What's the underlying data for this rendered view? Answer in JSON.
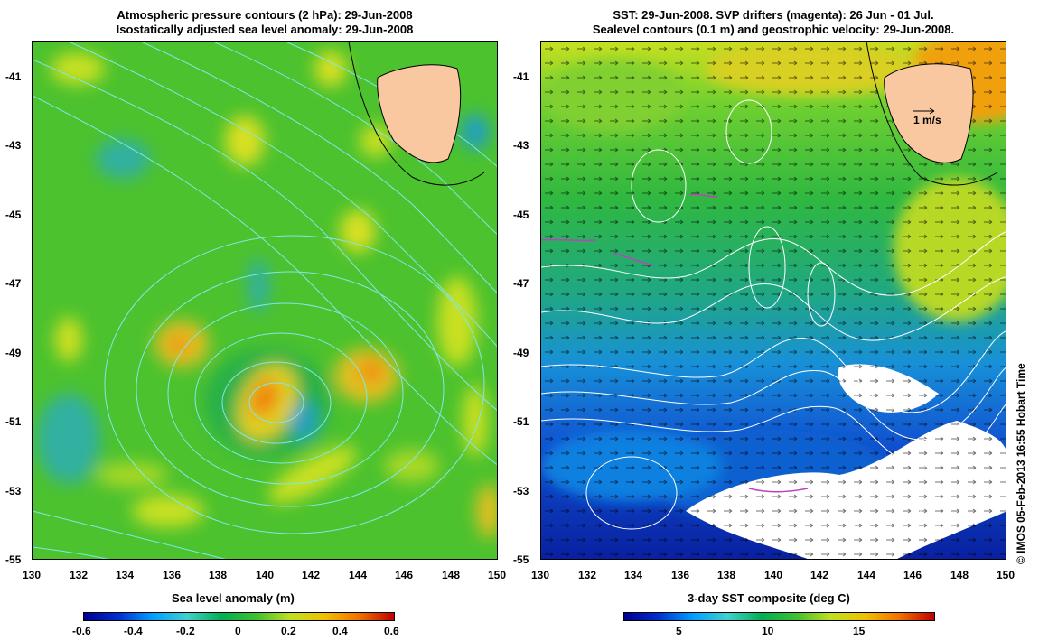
{
  "left_panel": {
    "title_line1": "Atmospheric pressure contours (2 hPa): 29-Jun-2008",
    "title_line2": "Isostatically adjusted sea level anomaly: 29-Jun-2008",
    "colorbar_title": "Sea level anomaly (m)",
    "colorbar_ticks": [
      "-0.6",
      "-0.4",
      "-0.2",
      "0",
      "0.2",
      "0.4",
      "0.6"
    ],
    "colorbar_range": [
      -0.6,
      0.6
    ],
    "colormap": [
      "#000090",
      "#0030d0",
      "#00a0ff",
      "#40d0d0",
      "#00b050",
      "#40c030",
      "#c0e020",
      "#f0c000",
      "#f07000",
      "#c00000"
    ]
  },
  "right_panel": {
    "title_line1": "SST: 29-Jun-2008. SVP drifters (magenta): 26 Jun - 01 Jul.",
    "title_line2": "Sealevel contours (0.1 m) and geostrophic velocity: 29-Jun-2008.",
    "colorbar_title": "3-day SST composite (deg C)",
    "colorbar_ticks": [
      "5",
      "10",
      "15"
    ],
    "colorbar_range": [
      1,
      19
    ],
    "velocity_scale_label": "1 m/s",
    "colormap": [
      "#000090",
      "#0030d0",
      "#00a0ff",
      "#40d0d0",
      "#00b050",
      "#40c030",
      "#c0e020",
      "#f0c000",
      "#f07000",
      "#c00000"
    ]
  },
  "axes": {
    "lon_range": [
      130,
      150
    ],
    "lat_range": [
      -55,
      -40
    ],
    "x_ticks": [
      "130",
      "132",
      "134",
      "136",
      "138",
      "140",
      "142",
      "144",
      "146",
      "148",
      "150"
    ],
    "y_ticks": [
      "-41",
      "-43",
      "-45",
      "-47",
      "-49",
      "-51",
      "-53",
      "-55"
    ]
  },
  "credit": "© IMOS 05-Feb-2013 16:55 Hobart Time",
  "colors": {
    "land": "#f9c8a0",
    "contour_left": "#7fe8e8",
    "contour_right": "#ffffff",
    "drifter": "#c040c0"
  }
}
